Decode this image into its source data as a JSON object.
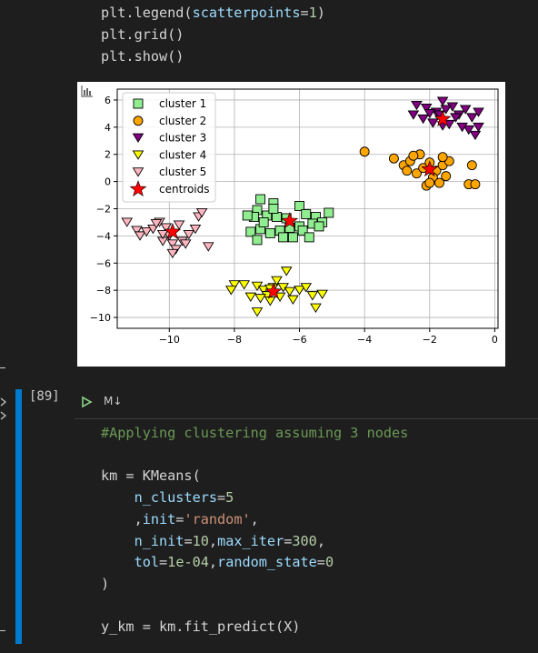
{
  "prev_cell": {
    "lines": [
      [
        {
          "t": "plt.legend(",
          "c": "plain"
        },
        {
          "t": "scatterpoints",
          "c": "kw"
        },
        {
          "t": "=",
          "c": "plain"
        },
        {
          "t": "1",
          "c": "num"
        },
        {
          "t": ")",
          "c": "plain"
        }
      ],
      [
        {
          "t": "plt.grid()",
          "c": "plain"
        }
      ],
      [
        {
          "t": "plt.show()",
          "c": "plain"
        }
      ]
    ]
  },
  "cell": {
    "exec_count": "[89]",
    "type_label": "M↓",
    "run_icon": "run-cell-icon",
    "lines": [
      [
        {
          "t": "#Applying clustering assuming 3 nodes",
          "c": "cmt"
        }
      ],
      [],
      [
        {
          "t": "km = KMeans(",
          "c": "plain"
        }
      ],
      [
        {
          "t": "    ",
          "c": "plain"
        },
        {
          "t": "n_clusters",
          "c": "kw"
        },
        {
          "t": "=",
          "c": "plain"
        },
        {
          "t": "5",
          "c": "num"
        }
      ],
      [
        {
          "t": "    ,",
          "c": "plain"
        },
        {
          "t": "init",
          "c": "kw"
        },
        {
          "t": "=",
          "c": "plain"
        },
        {
          "t": "'random'",
          "c": "str"
        },
        {
          "t": ",",
          "c": "plain"
        }
      ],
      [
        {
          "t": "    ",
          "c": "plain"
        },
        {
          "t": "n_init",
          "c": "kw"
        },
        {
          "t": "=",
          "c": "plain"
        },
        {
          "t": "10",
          "c": "num"
        },
        {
          "t": ",",
          "c": "plain"
        },
        {
          "t": "max_iter",
          "c": "kw"
        },
        {
          "t": "=",
          "c": "plain"
        },
        {
          "t": "300",
          "c": "num"
        },
        {
          "t": ",",
          "c": "plain"
        }
      ],
      [
        {
          "t": "    ",
          "c": "plain"
        },
        {
          "t": "tol",
          "c": "kw"
        },
        {
          "t": "=",
          "c": "plain"
        },
        {
          "t": "1e-04",
          "c": "num"
        },
        {
          "t": ",",
          "c": "plain"
        },
        {
          "t": "random_state",
          "c": "kw"
        },
        {
          "t": "=",
          "c": "plain"
        },
        {
          "t": "0",
          "c": "num"
        }
      ],
      [
        {
          "t": ")",
          "c": "plain"
        }
      ],
      [],
      [
        {
          "t": "y_km = km.fit_predict(X)",
          "c": "plain"
        }
      ]
    ]
  },
  "colors": {
    "accent": "#007acc",
    "run": "#89d185",
    "cluster1": "#90ee90",
    "cluster2": "#ffa500",
    "cluster3": "#800080",
    "cluster4": "#ffff00",
    "cluster5": "#ffb6c1",
    "centroids": "#ff0000"
  },
  "chart_data": {
    "type": "scatter",
    "xlim": [
      -11.6,
      0.1
    ],
    "ylim": [
      -10.8,
      6.8
    ],
    "xticks": [
      -10,
      -8,
      -6,
      -4,
      -2,
      0
    ],
    "yticks": [
      6,
      4,
      2,
      0,
      -2,
      -4,
      -6,
      -8,
      -10
    ],
    "grid": true,
    "legend_position": "top-left",
    "series": [
      {
        "name": "cluster 1",
        "marker": "square",
        "color": "#90ee90",
        "points": [
          [
            -7.2,
            -1.3
          ],
          [
            -6.8,
            -1.6
          ],
          [
            -7.3,
            -2.1
          ],
          [
            -7.0,
            -2.5
          ],
          [
            -6.7,
            -2.6
          ],
          [
            -6.4,
            -2.7
          ],
          [
            -6.0,
            -1.8
          ],
          [
            -5.8,
            -2.4
          ],
          [
            -5.5,
            -2.6
          ],
          [
            -5.1,
            -2.3
          ],
          [
            -5.3,
            -3.0
          ],
          [
            -5.6,
            -3.1
          ],
          [
            -6.0,
            -3.3
          ],
          [
            -6.3,
            -3.4
          ],
          [
            -6.6,
            -3.6
          ],
          [
            -6.9,
            -3.8
          ],
          [
            -7.2,
            -3.5
          ],
          [
            -7.4,
            -2.6
          ],
          [
            -7.6,
            -2.5
          ],
          [
            -7.5,
            -3.7
          ],
          [
            -7.3,
            -4.3
          ],
          [
            -6.5,
            -4.1
          ],
          [
            -6.2,
            -4.1
          ],
          [
            -5.9,
            -3.6
          ],
          [
            -5.4,
            -3.3
          ],
          [
            -6.8,
            -2.0
          ],
          [
            -7.1,
            -3.0
          ],
          [
            -5.7,
            -4.1
          ]
        ]
      },
      {
        "name": "cluster 2",
        "marker": "circle",
        "color": "#ffa500",
        "points": [
          [
            -4.0,
            2.2
          ],
          [
            -3.1,
            1.7
          ],
          [
            -2.8,
            1.2
          ],
          [
            -2.6,
            1.5
          ],
          [
            -2.4,
            0.6
          ],
          [
            -2.2,
            1.0
          ],
          [
            -2.0,
            1.4
          ],
          [
            -1.8,
            0.8
          ],
          [
            -1.6,
            1.2
          ],
          [
            -1.4,
            1.5
          ],
          [
            -2.3,
            2.0
          ],
          [
            -1.9,
            0.3
          ],
          [
            -2.1,
            -0.3
          ],
          [
            -1.7,
            -0.1
          ],
          [
            -1.5,
            0.4
          ],
          [
            -0.7,
            1.2
          ],
          [
            -0.8,
            -0.2
          ],
          [
            -0.6,
            -0.2
          ],
          [
            -2.5,
            1.9
          ],
          [
            -2.0,
            -0.1
          ],
          [
            -1.6,
            1.8
          ],
          [
            -2.7,
            0.8
          ]
        ]
      },
      {
        "name": "cluster 3",
        "marker": "tri-down",
        "color": "#800080",
        "points": [
          [
            -2.4,
            5.6
          ],
          [
            -2.1,
            5.4
          ],
          [
            -1.8,
            5.1
          ],
          [
            -1.6,
            5.9
          ],
          [
            -1.3,
            5.5
          ],
          [
            -1.1,
            4.9
          ],
          [
            -0.9,
            5.3
          ],
          [
            -0.7,
            4.7
          ],
          [
            -0.5,
            5.1
          ],
          [
            -2.2,
            4.6
          ],
          [
            -1.9,
            4.3
          ],
          [
            -1.6,
            4.1
          ],
          [
            -1.4,
            4.2
          ],
          [
            -1.2,
            4.7
          ],
          [
            -0.8,
            3.8
          ],
          [
            -0.6,
            3.4
          ],
          [
            -0.5,
            4.0
          ],
          [
            -2.5,
            4.9
          ],
          [
            -1.7,
            4.9
          ],
          [
            -1.0,
            4.0
          ],
          [
            -2.0,
            5.0
          ],
          [
            -1.5,
            5.3
          ]
        ]
      },
      {
        "name": "cluster 4",
        "marker": "tri-down",
        "color": "#ffff00",
        "points": [
          [
            -8.0,
            -7.6
          ],
          [
            -8.1,
            -8.0
          ],
          [
            -7.7,
            -7.6
          ],
          [
            -7.3,
            -7.7
          ],
          [
            -7.1,
            -8.0
          ],
          [
            -7.0,
            -8.4
          ],
          [
            -6.8,
            -7.8
          ],
          [
            -6.7,
            -7.3
          ],
          [
            -6.5,
            -7.8
          ],
          [
            -6.3,
            -8.1
          ],
          [
            -6.4,
            -6.6
          ],
          [
            -6.0,
            -8.0
          ],
          [
            -5.8,
            -7.8
          ],
          [
            -5.6,
            -8.4
          ],
          [
            -5.5,
            -9.3
          ],
          [
            -5.3,
            -8.3
          ],
          [
            -6.9,
            -8.8
          ],
          [
            -7.2,
            -8.6
          ],
          [
            -7.3,
            -9.6
          ],
          [
            -6.6,
            -8.5
          ],
          [
            -7.5,
            -8.5
          ],
          [
            -6.2,
            -8.7
          ],
          [
            -6.9,
            -7.9
          ]
        ]
      },
      {
        "name": "cluster 5",
        "marker": "tri-down",
        "color": "#ffb6c1",
        "points": [
          [
            -11.3,
            -3.0
          ],
          [
            -11.0,
            -3.6
          ],
          [
            -10.9,
            -4.0
          ],
          [
            -10.7,
            -3.7
          ],
          [
            -10.5,
            -3.5
          ],
          [
            -10.3,
            -3.0
          ],
          [
            -10.1,
            -3.4
          ],
          [
            -10.0,
            -4.0
          ],
          [
            -9.9,
            -4.6
          ],
          [
            -9.8,
            -5.0
          ],
          [
            -9.6,
            -4.4
          ],
          [
            -9.4,
            -3.9
          ],
          [
            -9.2,
            -3.5
          ],
          [
            -9.1,
            -2.6
          ],
          [
            -9.0,
            -2.3
          ],
          [
            -8.8,
            -4.8
          ],
          [
            -10.2,
            -4.4
          ],
          [
            -9.9,
            -5.3
          ],
          [
            -10.4,
            -3.1
          ],
          [
            -10.2,
            -3.9
          ],
          [
            -9.7,
            -3.2
          ],
          [
            -9.5,
            -4.6
          ]
        ]
      },
      {
        "name": "centroids",
        "marker": "star",
        "color": "#ff0000",
        "points": [
          [
            -6.3,
            -2.9
          ],
          [
            -2.0,
            0.9
          ],
          [
            -1.6,
            4.6
          ],
          [
            -6.8,
            -8.1
          ],
          [
            -9.9,
            -3.7
          ]
        ]
      }
    ]
  },
  "figure": {
    "toolbar_icon": "chart-toolbar-icon"
  }
}
